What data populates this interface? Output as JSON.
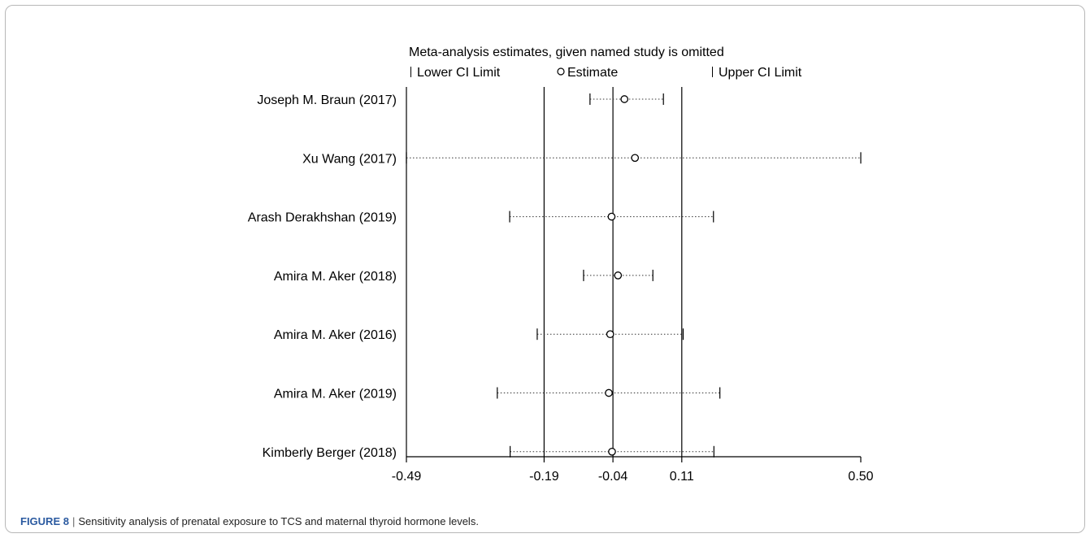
{
  "chart_data": {
    "type": "forest",
    "title": "Meta-analysis estimates, given named study is omitted",
    "legend": {
      "lower": "Lower CI Limit",
      "estimate": "Estimate",
      "upper": "Upper CI Limit",
      "placement": "top"
    },
    "xlim": [
      -0.49,
      0.5
    ],
    "x_ticks": [
      "-0.49",
      "-0.19",
      "-0.04",
      "0.11",
      "0.50"
    ],
    "x_tick_values": [
      -0.49,
      -0.19,
      -0.04,
      0.11,
      0.5
    ],
    "reference_lines": [
      -0.19,
      -0.04,
      0.11
    ],
    "studies": [
      {
        "name": "Joseph M. Braun (2017)",
        "estimate": -0.015,
        "lower": -0.09,
        "upper": 0.07
      },
      {
        "name": "Xu Wang (2017)",
        "estimate": 0.008,
        "lower": -0.49,
        "upper": 0.5
      },
      {
        "name": "Arash Derakhshan (2019)",
        "estimate": -0.043,
        "lower": -0.265,
        "upper": 0.179
      },
      {
        "name": "Amira M. Aker (2018)",
        "estimate": -0.029,
        "lower": -0.104,
        "upper": 0.047
      },
      {
        "name": "Amira M. Aker (2016)",
        "estimate": -0.046,
        "lower": -0.205,
        "upper": 0.113
      },
      {
        "name": "Amira M. Aker (2019)",
        "estimate": -0.049,
        "lower": -0.292,
        "upper": 0.193
      },
      {
        "name": "Kimberly Berger (2018)",
        "estimate": -0.042,
        "lower": -0.264,
        "upper": 0.18
      }
    ]
  },
  "caption": {
    "figure_label": "FIGURE 8",
    "separator": "|",
    "text": "Sensitivity analysis of prenatal exposure to TCS and maternal thyroid hormone levels."
  }
}
